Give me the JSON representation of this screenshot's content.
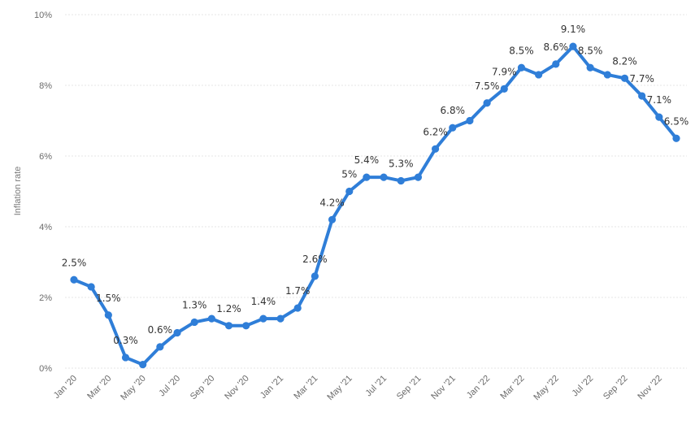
{
  "chart_data": {
    "type": "line",
    "title": "",
    "xlabel": "",
    "ylabel": "Inflation rate",
    "ylim": [
      0,
      10
    ],
    "yticks": [
      "0%",
      "2%",
      "4%",
      "6%",
      "8%",
      "10%"
    ],
    "ytick_values": [
      0,
      2,
      4,
      6,
      8,
      10
    ],
    "grid": true,
    "line_color": "#2f7ed8",
    "series": [
      {
        "values": [
          2.5,
          2.3,
          1.5,
          0.3,
          0.1,
          0.6,
          1.0,
          1.3,
          1.4,
          1.2,
          1.2,
          1.4,
          1.4,
          1.7,
          2.6,
          4.2,
          5.0,
          5.4,
          5.4,
          5.3,
          5.4,
          6.2,
          6.8,
          7.0,
          7.5,
          7.9,
          8.5,
          8.3,
          8.6,
          9.1,
          8.5,
          8.3,
          8.2,
          7.7,
          7.1,
          6.5
        ]
      }
    ],
    "x": [
      "Jan '20",
      "Feb '20",
      "Mar '20",
      "Apr '20",
      "May '20",
      "Jun '20",
      "Jul '20",
      "Aug '20",
      "Sep '20",
      "Oct '20",
      "Nov '20",
      "Dec '20",
      "Jan '21",
      "Feb '21",
      "Mar '21",
      "Apr '21",
      "May '21",
      "Jun '21",
      "Jul '21",
      "Aug '21",
      "Sep '21",
      "Oct '21",
      "Nov '21",
      "Dec '21",
      "Jan '22",
      "Feb '22",
      "Mar '22",
      "Apr '22",
      "May '22",
      "Jun '22",
      "Jul '22",
      "Aug '22",
      "Sep '22",
      "Oct '22",
      "Nov '22",
      "Dec '22"
    ],
    "x_tick_labels": [
      {
        "index": 0,
        "label": "Jan '20"
      },
      {
        "index": 2,
        "label": "Mar '20"
      },
      {
        "index": 4,
        "label": "May '20"
      },
      {
        "index": 6,
        "label": "Jul '20"
      },
      {
        "index": 8,
        "label": "Sep '20"
      },
      {
        "index": 10,
        "label": "Nov '20"
      },
      {
        "index": 12,
        "label": "Jan '21"
      },
      {
        "index": 14,
        "label": "Mar '21"
      },
      {
        "index": 16,
        "label": "May '21"
      },
      {
        "index": 18,
        "label": "Jul '21"
      },
      {
        "index": 20,
        "label": "Sep '21"
      },
      {
        "index": 22,
        "label": "Nov '21"
      },
      {
        "index": 24,
        "label": "Jan '22"
      },
      {
        "index": 26,
        "label": "Mar '22"
      },
      {
        "index": 28,
        "label": "May '22"
      },
      {
        "index": 30,
        "label": "Jul '22"
      },
      {
        "index": 32,
        "label": "Sep '22"
      },
      {
        "index": 34,
        "label": "Nov '22"
      }
    ],
    "data_labels": [
      {
        "index": 0,
        "text": "2.5%"
      },
      {
        "index": 2,
        "text": "1.5%"
      },
      {
        "index": 3,
        "text": "0.3%"
      },
      {
        "index": 5,
        "text": "0.6%"
      },
      {
        "index": 7,
        "text": "1.3%"
      },
      {
        "index": 9,
        "text": "1.2%"
      },
      {
        "index": 11,
        "text": "1.4%"
      },
      {
        "index": 13,
        "text": "1.7%"
      },
      {
        "index": 14,
        "text": "2.6%"
      },
      {
        "index": 15,
        "text": "4.2%"
      },
      {
        "index": 16,
        "text": "5%"
      },
      {
        "index": 17,
        "text": "5.4%"
      },
      {
        "index": 19,
        "text": "5.3%"
      },
      {
        "index": 21,
        "text": "6.2%"
      },
      {
        "index": 22,
        "text": "6.8%"
      },
      {
        "index": 24,
        "text": "7.5%"
      },
      {
        "index": 25,
        "text": "7.9%"
      },
      {
        "index": 26,
        "text": "8.5%"
      },
      {
        "index": 28,
        "text": "8.6%"
      },
      {
        "index": 29,
        "text": "9.1%"
      },
      {
        "index": 30,
        "text": "8.5%"
      },
      {
        "index": 32,
        "text": "8.2%"
      },
      {
        "index": 33,
        "text": "7.7%"
      },
      {
        "index": 34,
        "text": "7.1%"
      },
      {
        "index": 35,
        "text": "6.5%"
      }
    ]
  }
}
